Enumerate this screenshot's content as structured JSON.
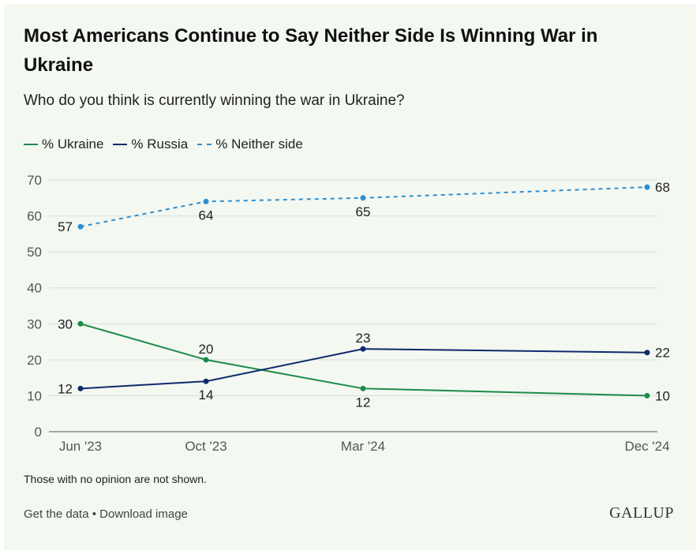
{
  "header": {
    "title": "Most Americans Continue to Say Neither Side Is Winning War in Ukraine",
    "subtitle": "Who do you think is currently winning the war in Ukraine?"
  },
  "legend": [
    {
      "label": "% Ukraine",
      "color": "#1c8a4a",
      "style": "solid"
    },
    {
      "label": "% Russia",
      "color": "#0f2a6e",
      "style": "solid"
    },
    {
      "label": "% Neither side",
      "color": "#2f8fcf",
      "style": "dashed"
    }
  ],
  "chart_data": {
    "type": "line",
    "categories": [
      "Jun '23",
      "Oct '23",
      "Mar '24",
      "Dec '24"
    ],
    "x": [
      "2023-06",
      "2023-10",
      "2024-03",
      "2024-12"
    ],
    "ylim": [
      0,
      70
    ],
    "yticks": [
      0,
      10,
      20,
      30,
      40,
      50,
      60,
      70
    ],
    "grid": true,
    "legend_position": "top-left",
    "series": [
      {
        "name": "% Ukraine",
        "values": [
          30,
          20,
          12,
          10
        ],
        "color": "#1c8a4a",
        "dashed": false
      },
      {
        "name": "% Russia",
        "values": [
          12,
          14,
          23,
          22
        ],
        "color": "#0f2a6e",
        "dashed": false
      },
      {
        "name": "% Neither side",
        "values": [
          57,
          64,
          65,
          68
        ],
        "color": "#2f8fcf",
        "dashed": true
      }
    ]
  },
  "footer": {
    "note": "Those with no opinion are not shown.",
    "get_data": "Get the data",
    "separator": " • ",
    "download": "Download image",
    "logo": "GALLUP"
  }
}
